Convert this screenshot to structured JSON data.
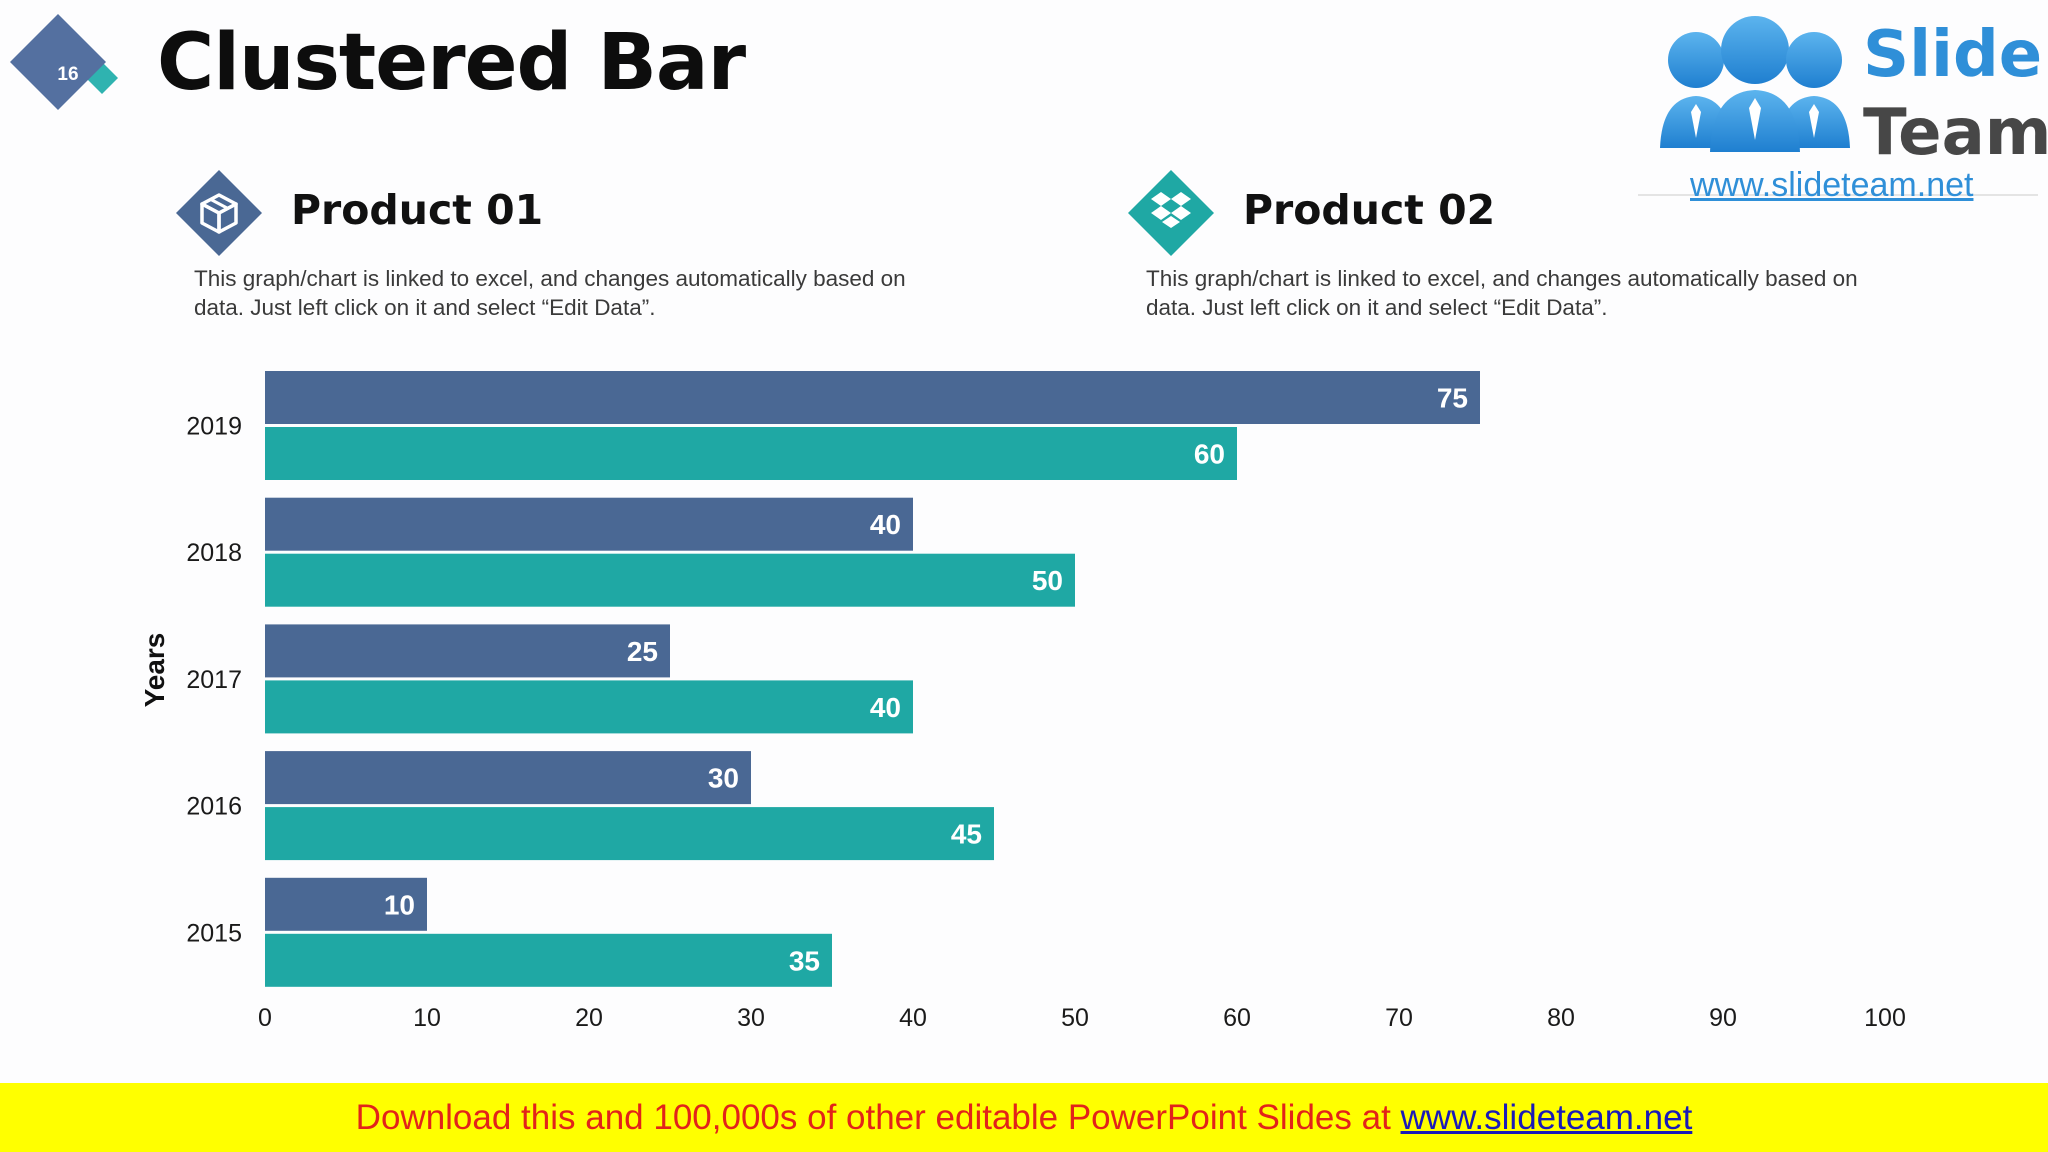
{
  "slide": {
    "number": "16",
    "title": "Clustered Bar"
  },
  "logo": {
    "word1": "Slide",
    "word2": "Team",
    "url": "www.slideteam.net"
  },
  "products": [
    {
      "title": "Product 01",
      "text": "This graph/chart is linked to excel, and changes automatically based on data. Just left click on it and select “Edit Data”.",
      "color": "#4a6894",
      "icon": "package-icon"
    },
    {
      "title": "Product 02",
      "text": "This graph/chart is linked to excel, and changes automatically based on data. Just left click on it and select “Edit Data”.",
      "color": "#1fa8a4",
      "icon": "dropbox-icon"
    }
  ],
  "banner": {
    "text": "Download this and 100,000s of other editable PowerPoint Slides at ",
    "link": "www.slideteam.net"
  },
  "chart_data": {
    "type": "bar",
    "orientation": "horizontal",
    "title": "",
    "xlabel": "",
    "ylabel": "Years",
    "categories": [
      "2019",
      "2018",
      "2017",
      "2016",
      "2015"
    ],
    "series": [
      {
        "name": "Product 01",
        "color": "#4a6894",
        "values": [
          75,
          40,
          25,
          30,
          10
        ]
      },
      {
        "name": "Product 02",
        "color": "#1fa8a4",
        "values": [
          60,
          50,
          40,
          45,
          35
        ]
      }
    ],
    "xlim": [
      0,
      100
    ],
    "xticks": [
      0,
      10,
      20,
      30,
      40,
      50,
      60,
      70,
      80,
      90,
      100
    ],
    "grid": false,
    "data_labels": true,
    "legend": "none"
  }
}
